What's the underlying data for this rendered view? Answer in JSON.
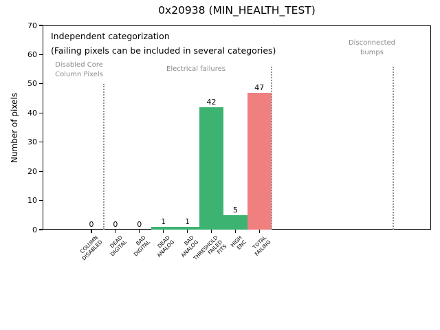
{
  "chart_data": {
    "type": "bar",
    "title": "0x20938 (MIN_HEALTH_TEST)",
    "ylabel": "Number of pixels",
    "xlabel": "",
    "ylim": [
      0,
      70
    ],
    "yticks": [
      0,
      10,
      20,
      30,
      40,
      50,
      60,
      70
    ],
    "grid": "off",
    "legend": "none",
    "categories": [
      "COLUMN\nDISABLED",
      "DEAD\nDIGITAL",
      "BAD\nDIGITAL",
      "DEAD\nANALOG",
      "BAD\nANALOG",
      "THRESHOLD\nFAILED\nFITS",
      "HIGH\nENC",
      "TOTAL\nFAILING"
    ],
    "values": [
      0,
      0,
      0,
      1,
      1,
      42,
      5,
      47
    ],
    "value_labels": [
      "0",
      "0",
      "0",
      "1",
      "1",
      "42",
      "5",
      "47"
    ],
    "bar_colors": [
      "#3CB371",
      "#3CB371",
      "#3CB371",
      "#3CB371",
      "#3CB371",
      "#3CB371",
      "#3CB371",
      "#F08080"
    ],
    "colors": {
      "pass_green": "#3CB371",
      "fail_red": "#F08080",
      "section_gray": "#8a8a8a",
      "divider_gray": "#8f8f8f"
    },
    "annotations": {
      "headline": "Independent categorization",
      "subheadline": "(Failing pixels can be included in several categories)",
      "sections": [
        {
          "label": "Disabled Core\nColumn Pixels"
        },
        {
          "label": "Electrical failures"
        },
        {
          "label": "Disconnected\nbumps"
        }
      ]
    }
  }
}
